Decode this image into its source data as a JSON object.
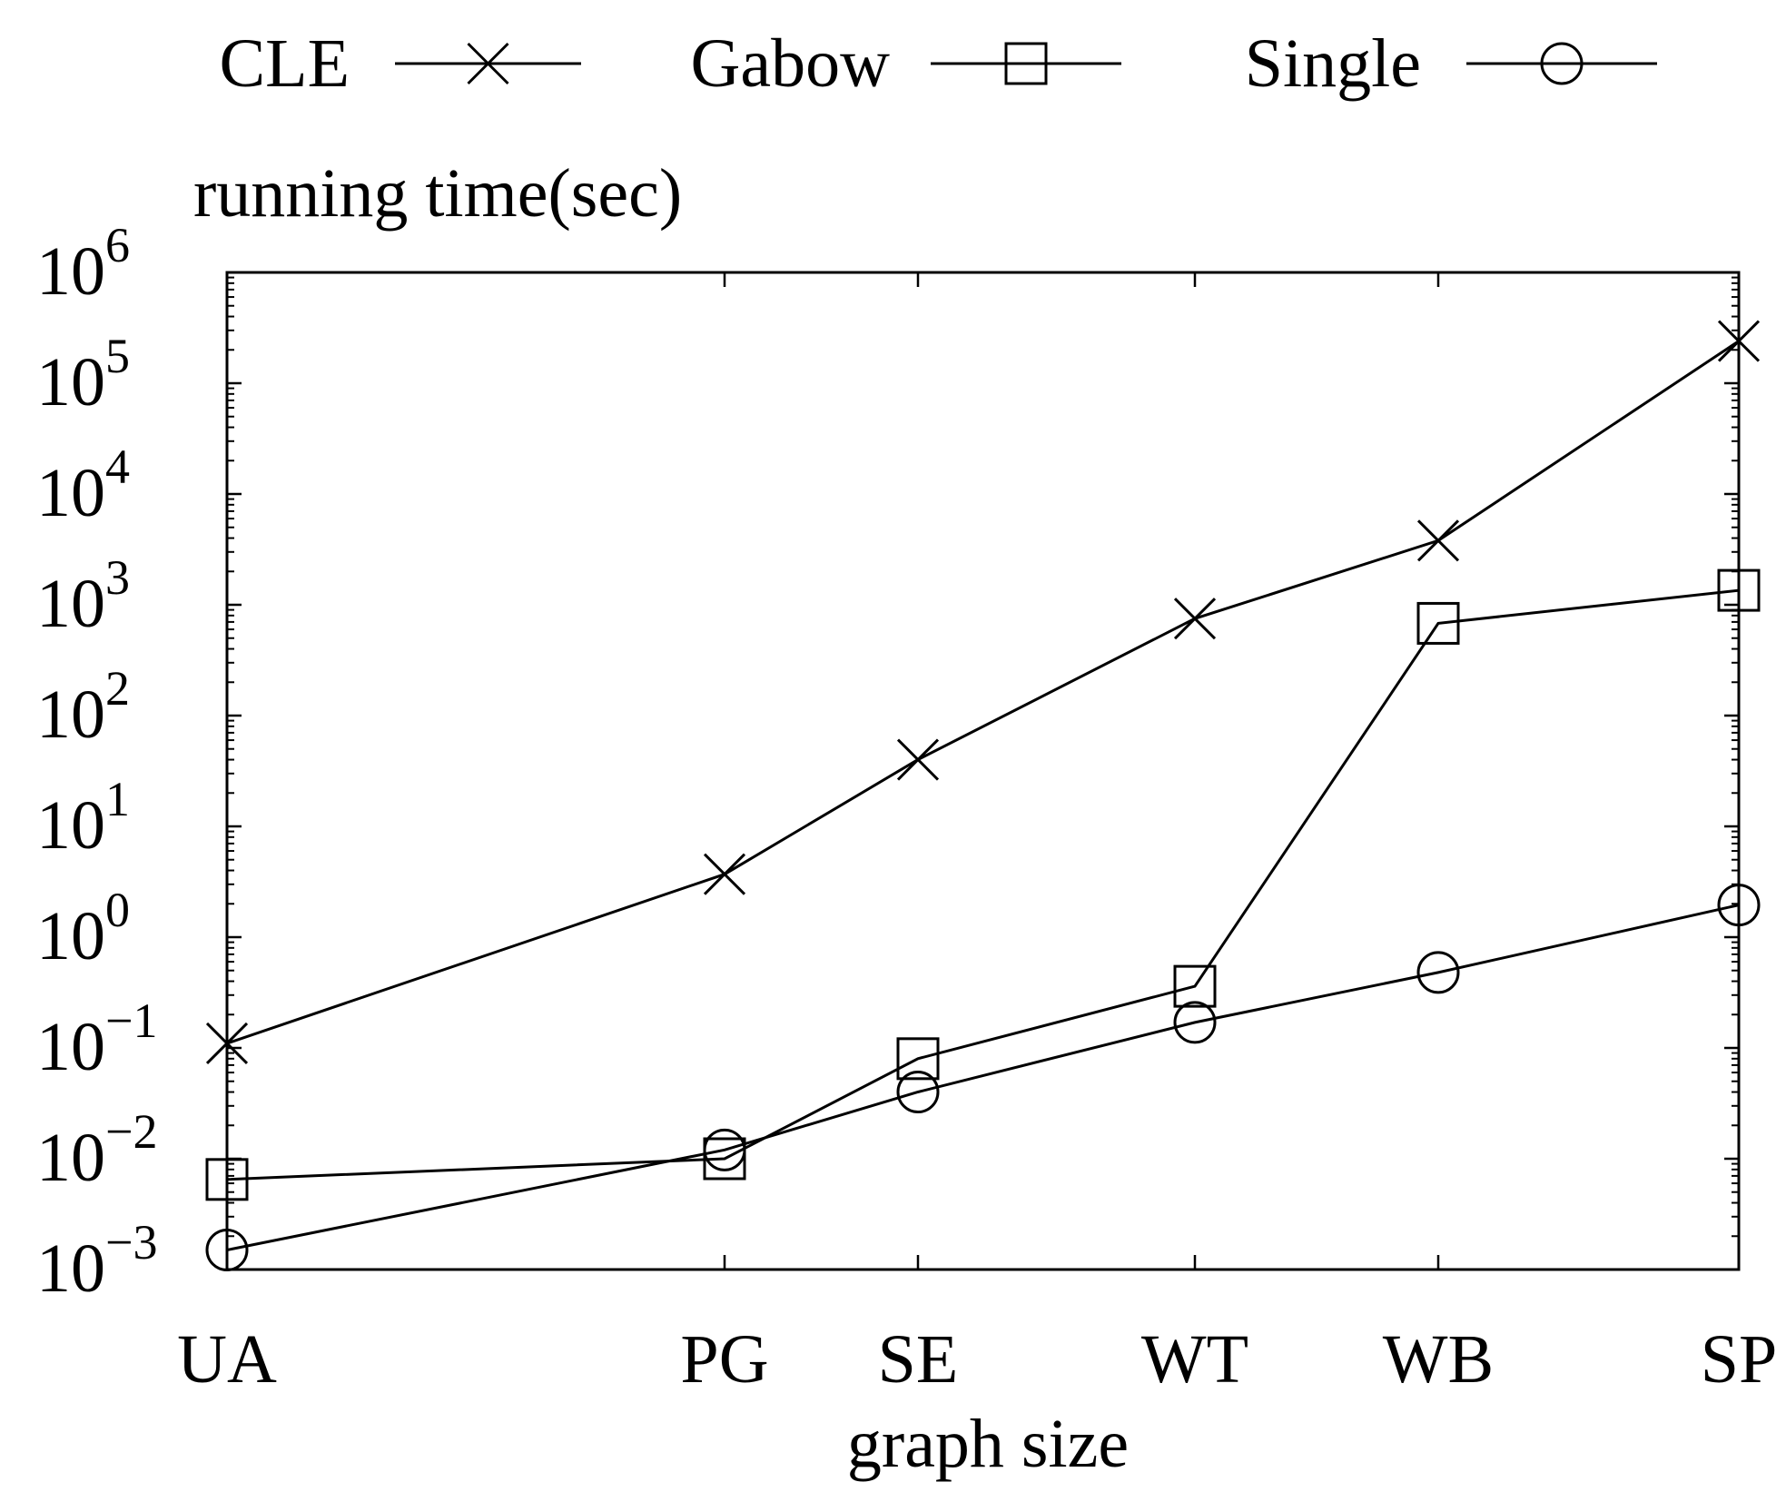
{
  "chart_data": {
    "type": "line",
    "title": "",
    "ylabel": "running time(sec)",
    "xlabel": "graph size",
    "yscale": "log",
    "ylim": [
      0.001,
      1000000
    ],
    "yticks": [
      {
        "value": 0.001,
        "base": "10",
        "exp": "−3"
      },
      {
        "value": 0.01,
        "base": "10",
        "exp": "−2"
      },
      {
        "value": 0.1,
        "base": "10",
        "exp": "−1"
      },
      {
        "value": 1,
        "base": "10",
        "exp": "0"
      },
      {
        "value": 10,
        "base": "10",
        "exp": "1"
      },
      {
        "value": 100,
        "base": "10",
        "exp": "2"
      },
      {
        "value": 1000,
        "base": "10",
        "exp": "3"
      },
      {
        "value": 10000,
        "base": "10",
        "exp": "4"
      },
      {
        "value": 100000,
        "base": "10",
        "exp": "5"
      },
      {
        "value": 1000000,
        "base": "10",
        "exp": "6"
      }
    ],
    "categories": [
      "UA",
      "PG",
      "SE",
      "WT",
      "WB",
      "SP"
    ],
    "legend_position": "top",
    "series": [
      {
        "name": "CLE",
        "marker": "cross",
        "values": [
          0.11,
          3.7,
          40,
          750,
          3800,
          240000
        ]
      },
      {
        "name": "Gabow",
        "marker": "square",
        "values": [
          0.0065,
          0.01,
          0.08,
          0.36,
          680,
          1350
        ]
      },
      {
        "name": "Single",
        "marker": "circle",
        "values": [
          0.0015,
          0.012,
          0.04,
          0.17,
          0.48,
          1.95
        ]
      }
    ]
  },
  "colors": {
    "line": "#000000",
    "background": "#ffffff"
  }
}
